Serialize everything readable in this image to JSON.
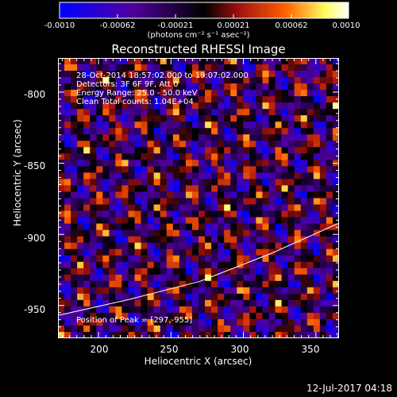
{
  "chart_data": {
    "type": "heatmap",
    "title": "Reconstructed RHESSI Image",
    "xlabel": "Heliocentric X (arcsec)",
    "ylabel": "Heliocentric Y (arcsec)",
    "x_ticks": [
      200,
      250,
      300,
      350
    ],
    "y_ticks": [
      -800,
      -850,
      -900,
      -950
    ],
    "xlim": [
      172,
      366
    ],
    "ylim": [
      -973,
      -776
    ],
    "colorbar": {
      "ticks": [
        "-0.0010",
        "-0.00062",
        "-0.00021",
        "0.00021",
        "0.00062",
        "0.0010"
      ],
      "unit_label": "(photons cm⁻² s⁻¹ asec⁻²)",
      "range": [
        -0.001,
        0.001
      ],
      "colors": [
        "#0000ff",
        "#5000a0",
        "#000000",
        "#a01010",
        "#ff6000",
        "#ffff60",
        "#ffffff"
      ]
    },
    "annotations": [
      "28-Oct-2014 18:57:02.000 to 19:07:02.000",
      "Detectors: 3F 6F 9F, Att 0",
      "Energy Range: 25.0 - 50.0 keV",
      "Clean     Total counts: 1.04E+04"
    ],
    "peak_label": "Position of Peak = [297,-955]",
    "peak": [
      297,
      -955
    ],
    "limb_curve": [
      [
        172,
        -957
      ],
      [
        220,
        -946
      ],
      [
        270,
        -933
      ],
      [
        320,
        -913
      ],
      [
        366,
        -892
      ]
    ]
  },
  "footer": {
    "date": "12-Jul-2017 04:18"
  }
}
